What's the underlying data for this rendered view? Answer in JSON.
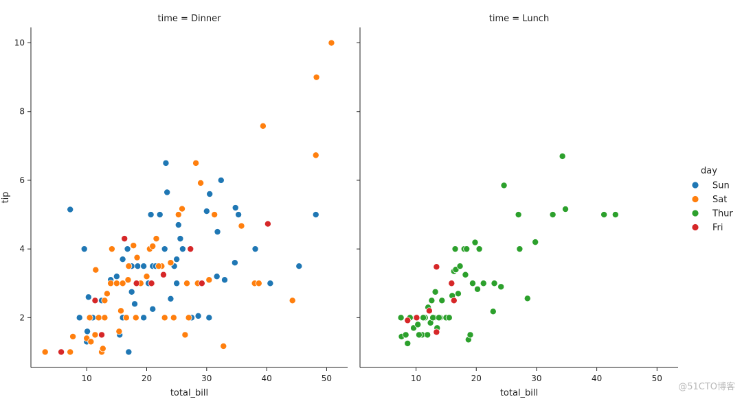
{
  "chart_data": {
    "type": "scatter",
    "x_label": "total_bill",
    "y_label": "tip",
    "xlim": [
      0.7,
      53.5
    ],
    "ylim": [
      0.55,
      10.45
    ],
    "x_ticks": [
      10,
      20,
      30,
      40,
      50
    ],
    "y_ticks": [
      2,
      4,
      6,
      8,
      10
    ],
    "hue": "day",
    "legend": {
      "title": "day",
      "position": "right",
      "entries": [
        {
          "label": "Sun",
          "color": "#1f77b4"
        },
        {
          "label": "Sat",
          "color": "#ff7f0e"
        },
        {
          "label": "Thur",
          "color": "#2ca02c"
        },
        {
          "label": "Fri",
          "color": "#d62728"
        }
      ]
    },
    "panels": [
      {
        "title": "time = Dinner",
        "series": [
          {
            "name": "Sun",
            "color": "#1f77b4",
            "points": [
              [
                7.25,
                5.15
              ],
              [
                9.6,
                4.0
              ],
              [
                10.3,
                2.6
              ],
              [
                13.0,
                2.0
              ],
              [
                14.0,
                3.0
              ],
              [
                15.0,
                3.2
              ],
              [
                16.0,
                3.7
              ],
              [
                16.8,
                4.0
              ],
              [
                17.5,
                3.5
              ],
              [
                18.5,
                3.5
              ],
              [
                19.5,
                3.5
              ],
              [
                21.0,
                3.5
              ],
              [
                20.7,
                5.0
              ],
              [
                22.2,
                5.0
              ],
              [
                23.2,
                6.5
              ],
              [
                23.4,
                5.65
              ],
              [
                24.6,
                3.5
              ],
              [
                25.0,
                3.0
              ],
              [
                25.3,
                4.7
              ],
              [
                25.6,
                4.3
              ],
              [
                27.5,
                2.0
              ],
              [
                30.0,
                5.1
              ],
              [
                30.5,
                5.6
              ],
              [
                31.8,
                4.5
              ],
              [
                32.4,
                6.0
              ],
              [
                34.8,
                5.2
              ],
              [
                35.3,
                5.0
              ],
              [
                34.7,
                3.6
              ],
              [
                38.1,
                4.0
              ],
              [
                40.6,
                3.0
              ],
              [
                45.4,
                3.5
              ],
              [
                48.2,
                5.0
              ],
              [
                28.6,
                2.05
              ],
              [
                30.4,
                2.0
              ],
              [
                24.0,
                2.55
              ],
              [
                21.0,
                2.25
              ],
              [
                14.0,
                3.1
              ],
              [
                12.5,
                2.5
              ],
              [
                11.0,
                2.0
              ],
              [
                8.8,
                2.0
              ],
              [
                10.1,
                1.6
              ],
              [
                10.0,
                1.3
              ],
              [
                17.0,
                1.0
              ],
              [
                16.0,
                2.0
              ],
              [
                19.5,
                2.0
              ],
              [
                15.5,
                1.5
              ],
              [
                20.3,
                3.0
              ],
              [
                23.0,
                4.0
              ],
              [
                25.0,
                3.7
              ],
              [
                33.0,
                3.1
              ],
              [
                31.7,
                3.2
              ],
              [
                29.0,
                3.0
              ],
              [
                21.5,
                3.5
              ],
              [
                17.5,
                2.75
              ],
              [
                18.0,
                2.4
              ],
              [
                26.0,
                4.0
              ]
            ]
          },
          {
            "name": "Sat",
            "color": "#ff7f0e",
            "points": [
              [
                3.07,
                1.0
              ],
              [
                7.25,
                1.0
              ],
              [
                7.7,
                1.45
              ],
              [
                10.0,
                1.4
              ],
              [
                10.5,
                2.0
              ],
              [
                11.5,
                3.39
              ],
              [
                12.0,
                2.0
              ],
              [
                12.5,
                1.0
              ],
              [
                13.0,
                2.5
              ],
              [
                13.4,
                2.7
              ],
              [
                14.2,
                4.0
              ],
              [
                15.0,
                3.0
              ],
              [
                15.7,
                2.2
              ],
              [
                16.0,
                3.0
              ],
              [
                16.6,
                2.0
              ],
              [
                17.0,
                3.5
              ],
              [
                17.8,
                4.1
              ],
              [
                18.4,
                3.75
              ],
              [
                19.0,
                3.0
              ],
              [
                20.0,
                3.2
              ],
              [
                20.5,
                4.0
              ],
              [
                21.0,
                4.08
              ],
              [
                21.6,
                4.3
              ],
              [
                22.5,
                3.5
              ],
              [
                23.0,
                2.0
              ],
              [
                24.0,
                3.6
              ],
              [
                25.3,
                5.0
              ],
              [
                25.9,
                5.17
              ],
              [
                26.4,
                1.5
              ],
              [
                26.7,
                3.0
              ],
              [
                28.2,
                6.5
              ],
              [
                29.0,
                5.92
              ],
              [
                30.4,
                3.1
              ],
              [
                31.3,
                5.0
              ],
              [
                32.8,
                1.17
              ],
              [
                35.8,
                4.67
              ],
              [
                38.0,
                3.0
              ],
              [
                38.7,
                3.0
              ],
              [
                39.4,
                7.58
              ],
              [
                44.3,
                2.5
              ],
              [
                48.2,
                6.73
              ],
              [
                48.3,
                9.0
              ],
              [
                50.8,
                10.0
              ],
              [
                14.0,
                3.0
              ],
              [
                16.9,
                3.1
              ],
              [
                18.2,
                2.0
              ],
              [
                20.9,
                3.0
              ],
              [
                22.0,
                3.5
              ],
              [
                24.5,
                2.0
              ],
              [
                27.0,
                2.0
              ],
              [
                28.5,
                3.0
              ],
              [
                15.4,
                1.6
              ],
              [
                13.0,
                2.0
              ],
              [
                11.4,
                1.5
              ],
              [
                10.7,
                1.3
              ],
              [
                12.7,
                1.1
              ]
            ]
          },
          {
            "name": "Fri",
            "color": "#d62728",
            "points": [
              [
                5.75,
                1.0
              ],
              [
                11.4,
                2.5
              ],
              [
                12.5,
                1.5
              ],
              [
                16.3,
                4.3
              ],
              [
                18.3,
                3.0
              ],
              [
                20.8,
                3.0
              ],
              [
                22.8,
                3.25
              ],
              [
                27.3,
                4.0
              ],
              [
                29.2,
                3.0
              ],
              [
                40.2,
                4.73
              ]
            ]
          }
        ]
      },
      {
        "title": "time = Lunch",
        "series": [
          {
            "name": "Thur",
            "color": "#2ca02c",
            "points": [
              [
                7.5,
                2.0
              ],
              [
                7.6,
                1.45
              ],
              [
                8.3,
                1.5
              ],
              [
                8.6,
                1.25
              ],
              [
                9.6,
                1.7
              ],
              [
                10.0,
                2.0
              ],
              [
                10.3,
                1.8
              ],
              [
                11.0,
                1.5
              ],
              [
                11.5,
                2.0
              ],
              [
                11.9,
                1.5
              ],
              [
                12.0,
                2.3
              ],
              [
                12.4,
                1.85
              ],
              [
                12.6,
                2.5
              ],
              [
                13.0,
                2.0
              ],
              [
                13.2,
                2.75
              ],
              [
                13.5,
                1.7
              ],
              [
                14.0,
                2.0
              ],
              [
                14.3,
                2.5
              ],
              [
                15.0,
                2.0
              ],
              [
                15.5,
                2.0
              ],
              [
                16.0,
                2.64
              ],
              [
                16.3,
                3.35
              ],
              [
                16.5,
                4.0
              ],
              [
                16.6,
                3.4
              ],
              [
                17.0,
                2.7
              ],
              [
                17.3,
                3.5
              ],
              [
                18.0,
                4.0
              ],
              [
                18.2,
                3.25
              ],
              [
                18.4,
                4.0
              ],
              [
                18.7,
                1.36
              ],
              [
                19.0,
                1.5
              ],
              [
                19.4,
                3.0
              ],
              [
                19.8,
                4.19
              ],
              [
                20.2,
                2.83
              ],
              [
                20.5,
                4.0
              ],
              [
                21.2,
                3.0
              ],
              [
                22.8,
                2.18
              ],
              [
                23.0,
                3.0
              ],
              [
                24.1,
                2.9
              ],
              [
                24.6,
                5.85
              ],
              [
                27.0,
                5.0
              ],
              [
                27.2,
                4.0
              ],
              [
                28.5,
                2.56
              ],
              [
                29.8,
                4.2
              ],
              [
                32.7,
                5.0
              ],
              [
                34.3,
                6.7
              ],
              [
                34.8,
                5.16
              ],
              [
                41.2,
                5.0
              ],
              [
                43.1,
                5.0
              ],
              [
                13.8,
                2.0
              ],
              [
                12.8,
                2.0
              ],
              [
                11.2,
                2.0
              ],
              [
                10.5,
                1.5
              ],
              [
                9.0,
                2.0
              ]
            ]
          },
          {
            "name": "Fri",
            "color": "#d62728",
            "points": [
              [
                8.6,
                1.92
              ],
              [
                10.1,
                2.0
              ],
              [
                12.2,
                2.2
              ],
              [
                13.4,
                1.58
              ],
              [
                13.4,
                3.48
              ],
              [
                15.9,
                3.0
              ],
              [
                16.3,
                2.5
              ]
            ]
          }
        ]
      }
    ]
  },
  "watermark": "@51CTO博客"
}
